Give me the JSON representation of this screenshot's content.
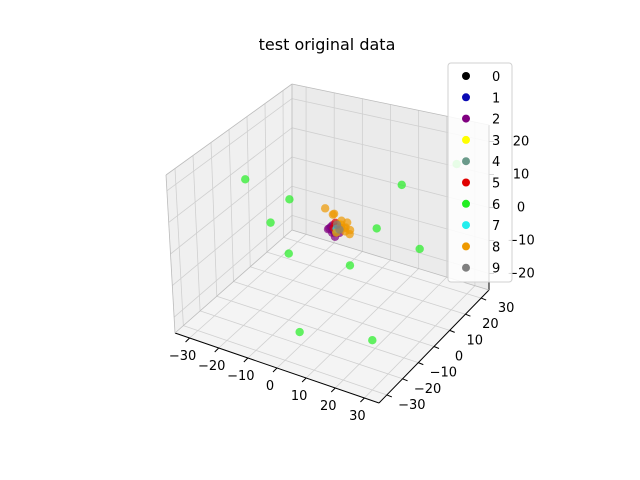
{
  "chart_data": {
    "type": "scatter",
    "projection": "3d",
    "title": "test original data",
    "xlabel": "",
    "ylabel": "",
    "zlabel": "",
    "xlim": [
      -35,
      35
    ],
    "ylim": [
      -35,
      35
    ],
    "zlim": [
      -25,
      25
    ],
    "xticks": [
      "−30",
      "−20",
      "−10",
      "0",
      "10",
      "20",
      "30"
    ],
    "yticks": [
      "−30",
      "−20",
      "−10",
      "0",
      "10",
      "20",
      "30"
    ],
    "zticks": [
      "−20",
      "−10",
      "0",
      "10",
      "20"
    ],
    "xtick_values": [
      -30,
      -20,
      -10,
      0,
      10,
      20,
      30
    ],
    "ytick_values": [
      -30,
      -20,
      -10,
      0,
      10,
      20,
      30
    ],
    "ztick_values": [
      -20,
      -10,
      0,
      10,
      20
    ],
    "grid": true,
    "legend_position": "top-right",
    "series": [
      {
        "name": "0",
        "color": "#000000",
        "points": [
          [
            0,
            0,
            0
          ],
          [
            1,
            -1,
            1
          ]
        ]
      },
      {
        "name": "1",
        "color": "#0a0ab4",
        "points": [
          [
            -1,
            1,
            0
          ],
          [
            0,
            1,
            1
          ]
        ]
      },
      {
        "name": "2",
        "color": "#800080",
        "points": [
          [
            0,
            0,
            0
          ],
          [
            1,
            0,
            1
          ],
          [
            0,
            1,
            -1
          ],
          [
            -1,
            0,
            1
          ],
          [
            1,
            1,
            0
          ],
          [
            0,
            -1,
            0
          ],
          [
            -1,
            -1,
            1
          ],
          [
            2,
            0,
            0
          ],
          [
            0,
            2,
            0
          ],
          [
            1,
            -1,
            -1
          ],
          [
            -1,
            1,
            1
          ],
          [
            2,
            1,
            1
          ],
          [
            1,
            2,
            0
          ],
          [
            -2,
            0,
            0
          ]
        ]
      },
      {
        "name": "3",
        "color": "#ffff00",
        "points": [
          [
            1,
            1,
            2
          ],
          [
            0,
            2,
            1
          ]
        ]
      },
      {
        "name": "4",
        "color": "#6a9a8a",
        "points": [
          [
            0,
            1,
            0
          ],
          [
            1,
            0,
            0
          ]
        ]
      },
      {
        "name": "5",
        "color": "#e00000",
        "points": [
          [
            0,
            0,
            1
          ],
          [
            1,
            1,
            1
          ],
          [
            0,
            1,
            2
          ]
        ]
      },
      {
        "name": "6",
        "color": "#22ee22",
        "points": [
          [
            -5,
            -30,
            15
          ],
          [
            28,
            27,
            15
          ],
          [
            -28,
            -5,
            10
          ],
          [
            -30,
            25,
            -10
          ],
          [
            0,
            10,
            -15
          ],
          [
            30,
            0,
            3
          ],
          [
            -10,
            -10,
            -5
          ],
          [
            15,
            0,
            5
          ],
          [
            5,
            -30,
            -15
          ],
          [
            30,
            -30,
            -10
          ],
          [
            8,
            28,
            3
          ]
        ]
      },
      {
        "name": "7",
        "color": "#22eeee",
        "points": [
          [
            1,
            0,
            1
          ]
        ]
      },
      {
        "name": "8",
        "color": "#ee9900",
        "points": [
          [
            3,
            2,
            1
          ],
          [
            2,
            3,
            0
          ],
          [
            4,
            0,
            1
          ],
          [
            -2,
            3,
            3
          ],
          [
            3,
            -1,
            2
          ],
          [
            1,
            3,
            2
          ],
          [
            -1,
            2,
            4
          ],
          [
            4,
            3,
            0
          ],
          [
            2,
            -2,
            1
          ],
          [
            -3,
            0,
            6
          ],
          [
            5,
            1,
            0
          ],
          [
            3,
            3,
            2
          ],
          [
            2,
            1,
            2
          ]
        ]
      },
      {
        "name": "9",
        "color": "#7f7f7f",
        "points": [
          [
            2,
            0,
            1
          ],
          [
            0,
            2,
            1
          ]
        ]
      }
    ]
  }
}
